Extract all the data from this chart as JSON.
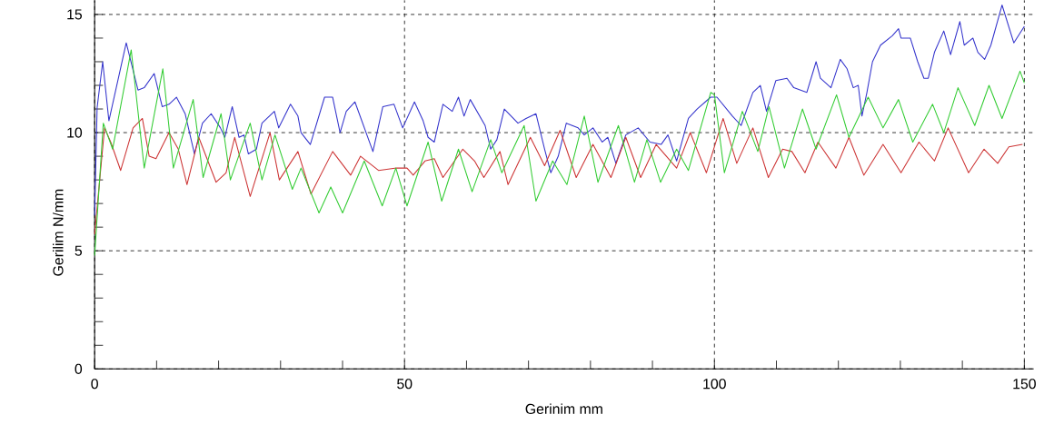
{
  "chart_data": {
    "type": "line",
    "xlabel": "Gerinim mm",
    "ylabel": "Gerilim N/mm",
    "xlim": [
      0,
      151.5
    ],
    "ylim": [
      0,
      15.6
    ],
    "xticks": [
      0,
      {
        "value": 10,
        "label": null
      },
      {
        "value": 20,
        "label": null
      },
      {
        "value": 30,
        "label": null
      },
      {
        "value": 40,
        "label": null
      },
      50,
      {
        "value": 60,
        "label": null
      },
      {
        "value": 70,
        "label": null
      },
      {
        "value": 80,
        "label": null
      },
      {
        "value": 90,
        "label": null
      },
      100,
      {
        "value": 110,
        "label": null
      },
      {
        "value": 120,
        "label": null
      },
      {
        "value": 130,
        "label": null
      },
      {
        "value": 140,
        "label": null
      },
      150
    ],
    "yticks": [
      0,
      {
        "value": 1,
        "label": null
      },
      {
        "value": 2,
        "label": null
      },
      {
        "value": 3,
        "label": null
      },
      {
        "value": 4,
        "label": null
      },
      5,
      {
        "value": 6,
        "label": null
      },
      {
        "value": 7,
        "label": null
      },
      {
        "value": 8,
        "label": null
      },
      {
        "value": 9,
        "label": null
      },
      10,
      {
        "value": 11,
        "label": null
      },
      {
        "value": 12,
        "label": null
      },
      {
        "value": 13,
        "label": null
      },
      {
        "value": 14,
        "label": null
      },
      15
    ],
    "grid": true,
    "marker": "none",
    "line_style": "solid",
    "series": [
      {
        "color": "#3333cc",
        "x": [
          0,
          0.4,
          1.3,
          2.3,
          5.1,
          7.0,
          8.0,
          9.6,
          10.9,
          12.0,
          13.2,
          14.6,
          16.1,
          17.4,
          18.8,
          20.3,
          21.0,
          22.2,
          23.3,
          24.1,
          24.8,
          26.1,
          27.0,
          29.0,
          29.7,
          31.6,
          32.8,
          33.3,
          34.8,
          37.1,
          38.4,
          39.6,
          40.6,
          42.0,
          44.9,
          46.5,
          48.3,
          49.7,
          51.6,
          53.0,
          53.8,
          54.8,
          56.2,
          57.7,
          58.7,
          59.6,
          60.6,
          63.0,
          63.9,
          64.9,
          66.1,
          68.3,
          69.6,
          71.2,
          72.6,
          73.6,
          74.8,
          76.1,
          78.0,
          79.0,
          80.4,
          81.9,
          82.8,
          84.1,
          85.7,
          87.7,
          89.6,
          91.4,
          92.5,
          93.9,
          95.8,
          97.2,
          99.4,
          100.4,
          102.9,
          104.3,
          106.2,
          107.4,
          108.4,
          109.9,
          111.7,
          112.8,
          114.9,
          116.4,
          117.1,
          118.8,
          120.3,
          121.4,
          122.4,
          123.2,
          123.8,
          124.6,
          125.5,
          126.8,
          128.7,
          129.7,
          130.1,
          131.6,
          132.8,
          133.8,
          134.5,
          135.5,
          137.0,
          138.1,
          139.6,
          140.3,
          141.7,
          142.5,
          143.6,
          144.6,
          146.4,
          148.3,
          150.0
        ],
        "values": [
          6.5,
          11.05,
          13.0,
          10.5,
          13.8,
          11.8,
          11.9,
          12.5,
          11.1,
          11.2,
          11.5,
          10.8,
          9.1,
          10.4,
          10.8,
          10.2,
          9.8,
          11.1,
          9.8,
          9.9,
          9.1,
          9.3,
          10.4,
          10.9,
          10.2,
          11.2,
          10.7,
          10.0,
          9.5,
          11.5,
          11.5,
          10.0,
          10.9,
          11.3,
          9.2,
          11.1,
          11.2,
          10.2,
          11.3,
          10.5,
          9.8,
          9.6,
          11.2,
          10.9,
          11.5,
          10.7,
          11.4,
          10.3,
          9.3,
          9.7,
          11.0,
          10.4,
          10.6,
          10.8,
          9.3,
          8.3,
          9.0,
          10.4,
          10.2,
          9.9,
          10.2,
          9.6,
          9.8,
          8.7,
          9.9,
          10.2,
          9.6,
          9.5,
          9.9,
          8.8,
          10.6,
          11.0,
          11.5,
          11.5,
          10.7,
          10.3,
          11.7,
          12.0,
          10.9,
          12.2,
          12.3,
          11.9,
          11.7,
          13.0,
          12.3,
          11.9,
          13.1,
          12.7,
          11.9,
          12.0,
          10.7,
          11.7,
          13.0,
          13.7,
          14.1,
          14.4,
          14.0,
          14.0,
          13.0,
          12.3,
          12.3,
          13.4,
          14.3,
          13.3,
          14.7,
          13.7,
          14.0,
          13.4,
          13.1,
          13.7,
          15.4,
          13.8,
          14.5
        ]
      },
      {
        "color": "#cc3333",
        "x": [
          0,
          1.6,
          2.6,
          4.2,
          6.2,
          7.7,
          8.8,
          9.9,
          12.0,
          13.5,
          14.9,
          16.8,
          19.6,
          21.2,
          22.6,
          25.1,
          28.3,
          29.8,
          32.8,
          34.9,
          38.4,
          41.3,
          42.9,
          45.8,
          48.7,
          50.4,
          51.4,
          53.3,
          54.8,
          56.2,
          59.4,
          61.3,
          62.8,
          65.4,
          66.7,
          70.3,
          72.6,
          75.1,
          77.7,
          80.4,
          83.3,
          85.7,
          88.1,
          90.6,
          93.9,
          96.1,
          98.7,
          101.4,
          103.6,
          106.2,
          108.7,
          111.0,
          112.5,
          114.6,
          116.7,
          119.6,
          121.7,
          124.1,
          127.2,
          130.1,
          133.0,
          135.5,
          137.7,
          141.0,
          143.5,
          145.7,
          147.5,
          149.7
        ],
        "values": [
          5.7,
          10.2,
          9.6,
          8.4,
          10.2,
          10.6,
          9.0,
          8.9,
          10.0,
          9.3,
          7.8,
          9.8,
          7.9,
          8.3,
          9.8,
          7.3,
          10.0,
          8.0,
          9.2,
          7.4,
          9.2,
          8.2,
          9.0,
          8.4,
          8.5,
          8.5,
          8.2,
          8.8,
          8.9,
          8.1,
          9.3,
          8.8,
          8.1,
          9.2,
          7.8,
          9.8,
          8.6,
          10.1,
          8.1,
          9.5,
          8.1,
          9.8,
          8.1,
          9.5,
          8.5,
          10.0,
          8.3,
          10.6,
          8.7,
          10.2,
          8.1,
          9.3,
          9.2,
          8.3,
          9.6,
          8.5,
          9.8,
          8.2,
          9.5,
          8.3,
          9.6,
          8.8,
          10.2,
          8.3,
          9.3,
          8.7,
          9.4,
          9.5
        ]
      },
      {
        "color": "#33cc33",
        "x": [
          0,
          1.4,
          2.9,
          5.9,
          8.0,
          11.0,
          12.7,
          15.9,
          17.5,
          20.4,
          21.9,
          25.1,
          27.0,
          29.1,
          31.9,
          33.3,
          36.2,
          38.1,
          40.0,
          43.5,
          46.4,
          48.6,
          50.4,
          53.8,
          56.0,
          58.7,
          60.9,
          63.9,
          65.7,
          69.3,
          71.2,
          73.9,
          76.2,
          79.0,
          81.2,
          84.5,
          87.1,
          89.1,
          91.3,
          93.9,
          95.8,
          99.4,
          100.0,
          101.6,
          104.5,
          107.0,
          108.8,
          111.3,
          114.2,
          116.4,
          119.7,
          121.7,
          124.8,
          127.2,
          129.7,
          132.0,
          135.2,
          137.0,
          139.3,
          142.0,
          144.3,
          146.4,
          149.3,
          150.0
        ],
        "values": [
          4.8,
          10.4,
          9.3,
          13.5,
          8.5,
          12.7,
          8.5,
          11.4,
          8.1,
          10.8,
          8.0,
          10.4,
          8.0,
          9.9,
          7.6,
          8.5,
          6.6,
          7.7,
          6.6,
          8.8,
          6.9,
          8.5,
          6.9,
          9.6,
          7.1,
          9.3,
          7.5,
          9.7,
          8.3,
          10.3,
          7.1,
          8.8,
          7.8,
          10.7,
          7.9,
          10.3,
          7.9,
          9.7,
          7.9,
          9.3,
          8.4,
          11.7,
          11.6,
          8.3,
          10.9,
          9.2,
          11.1,
          8.5,
          11.0,
          9.3,
          11.6,
          9.8,
          11.5,
          10.2,
          11.4,
          9.6,
          11.2,
          10.0,
          11.9,
          10.3,
          12.0,
          10.6,
          12.6,
          12.1
        ]
      }
    ]
  }
}
